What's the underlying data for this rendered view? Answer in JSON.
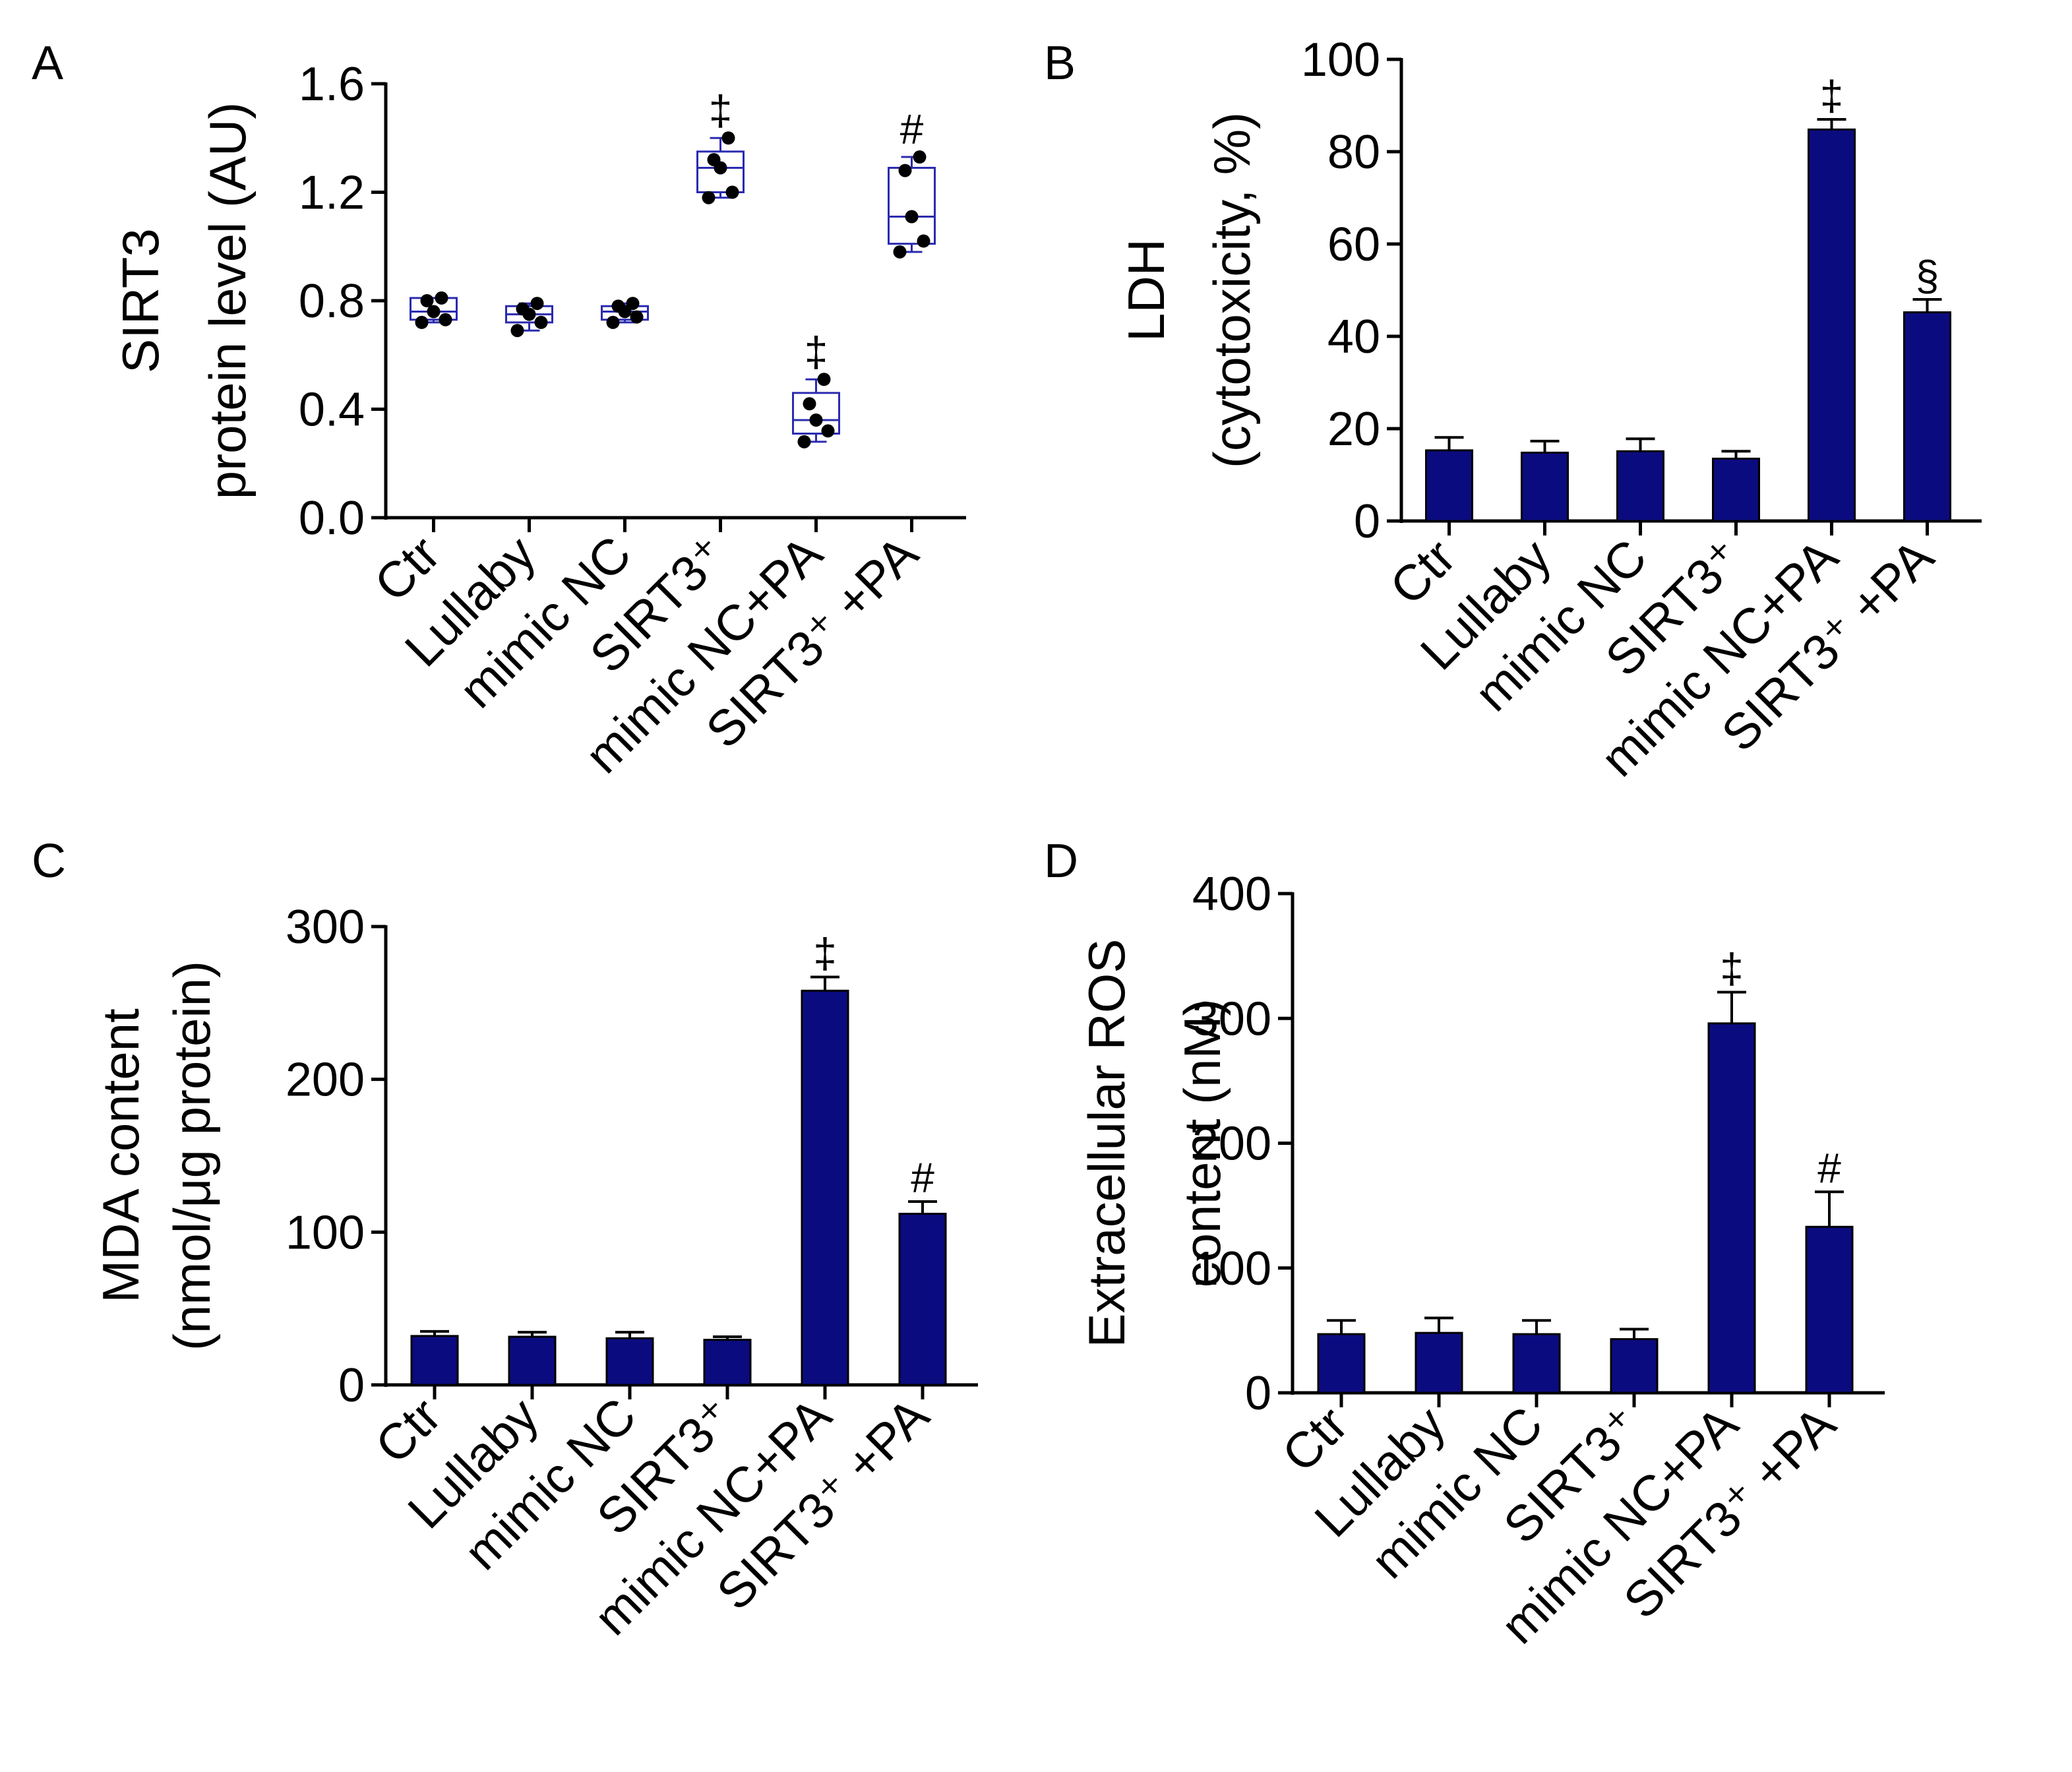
{
  "chart_data": [
    {
      "panel": "A",
      "type": "box",
      "ylabel_lines": [
        "SIRT3",
        "protein level (AU)"
      ],
      "ylim": [
        0,
        1.6
      ],
      "yticks": [
        "0.0",
        "0.4",
        "0.8",
        "1.2",
        "1.6"
      ],
      "categories": [
        "Ctr",
        "Lullaby",
        "mimic NC",
        "SIRT3⁺",
        "mimic NC+PA",
        "SIRT3⁺ +PA"
      ],
      "boxes": [
        {
          "min": 0.72,
          "q1": 0.73,
          "median": 0.76,
          "q3": 0.81,
          "max": 0.81,
          "points": [
            0.72,
            0.73,
            0.76,
            0.8,
            0.81
          ]
        },
        {
          "min": 0.69,
          "q1": 0.72,
          "median": 0.75,
          "q3": 0.78,
          "max": 0.79,
          "points": [
            0.69,
            0.72,
            0.75,
            0.77,
            0.79
          ]
        },
        {
          "min": 0.72,
          "q1": 0.73,
          "median": 0.76,
          "q3": 0.78,
          "max": 0.79,
          "points": [
            0.72,
            0.74,
            0.76,
            0.78,
            0.79
          ]
        },
        {
          "min": 1.18,
          "q1": 1.2,
          "median": 1.29,
          "q3": 1.35,
          "max": 1.4,
          "points": [
            1.18,
            1.2,
            1.29,
            1.32,
            1.4
          ]
        },
        {
          "min": 0.28,
          "q1": 0.31,
          "median": 0.36,
          "q3": 0.46,
          "max": 0.51,
          "points": [
            0.28,
            0.32,
            0.36,
            0.42,
            0.51
          ]
        },
        {
          "min": 0.98,
          "q1": 1.01,
          "median": 1.11,
          "q3": 1.29,
          "max": 1.33,
          "points": [
            0.98,
            1.02,
            1.11,
            1.28,
            1.33
          ]
        }
      ],
      "annotations": [
        "",
        "",
        "",
        "‡",
        "‡",
        "#"
      ]
    },
    {
      "panel": "B",
      "type": "bar",
      "ylabel_lines": [
        "LDH",
        "(cytotoxicity, %)"
      ],
      "ylim": [
        0,
        100
      ],
      "yticks": [
        "0",
        "20",
        "40",
        "60",
        "80",
        "100"
      ],
      "categories": [
        "Ctr",
        "Lullaby",
        "mimic NC",
        "SIRT3⁺",
        "mimic NC+PA",
        "SIRT3⁺ +PA"
      ],
      "values": [
        15.3,
        14.8,
        15.1,
        13.5,
        84.8,
        45.2
      ],
      "errors": [
        2.8,
        2.5,
        2.7,
        1.6,
        2.2,
        2.8
      ],
      "annotations": [
        "",
        "",
        "",
        "",
        "‡",
        "§"
      ]
    },
    {
      "panel": "C",
      "type": "bar",
      "ylabel_lines": [
        "MDA content",
        "(nmol/μg protein)"
      ],
      "ylim": [
        0,
        300
      ],
      "yticks": [
        "0",
        "100",
        "200",
        "300"
      ],
      "categories": [
        "Ctr",
        "Lullaby",
        "mimic NC",
        "SIRT3⁺",
        "mimic NC+PA",
        "SIRT3⁺ +PA"
      ],
      "values": [
        32,
        31.5,
        30.5,
        29.5,
        258,
        112
      ],
      "errors": [
        3,
        3,
        4,
        2,
        9,
        8
      ],
      "annotations": [
        "",
        "",
        "",
        "",
        "‡",
        "#"
      ]
    },
    {
      "panel": "D",
      "type": "bar",
      "ylabel_lines": [
        "Extracellular ROS",
        "content (nM)"
      ],
      "ylim": [
        0,
        400
      ],
      "yticks": [
        "0",
        "100",
        "200",
        "300",
        "400"
      ],
      "categories": [
        "Ctr",
        "Lullaby",
        "mimic NC",
        "SIRT3⁺",
        "mimic NC+PA",
        "SIRT3⁺ +PA"
      ],
      "values": [
        47,
        48,
        47,
        43,
        296,
        133
      ],
      "errors": [
        11,
        12,
        11,
        8,
        25,
        28
      ],
      "annotations": [
        "",
        "",
        "",
        "",
        "‡",
        "#"
      ]
    }
  ],
  "colors": {
    "bar_fill": "#0b0b80",
    "box_stroke": "#2b2bb0",
    "point_fill": "#000000",
    "axis": "#000000"
  }
}
